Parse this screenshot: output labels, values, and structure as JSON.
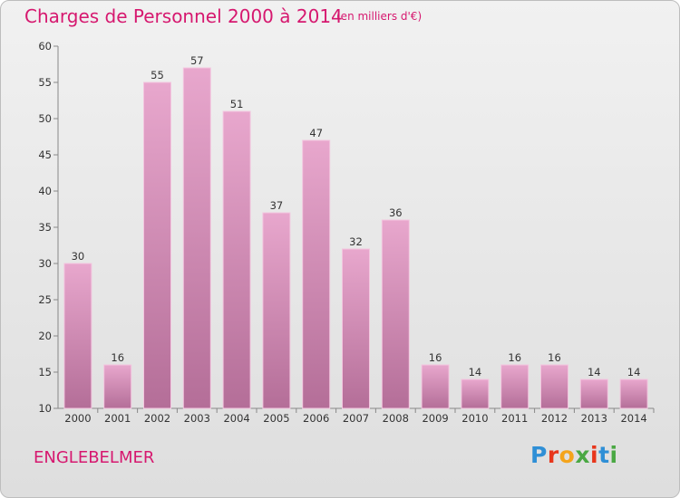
{
  "header": {
    "title": "Charges de Personnel 2000 à 2014",
    "unit": "(en milliers d'€)"
  },
  "footer": {
    "place": "ENGLEBELMER",
    "logo": "Proxiti"
  },
  "colors": {
    "accent": "#d6186f",
    "bar_top": "#e8a7cd",
    "bar_bottom": "#b46e98",
    "logo_letters": [
      "#2f8fd6",
      "#e8361c",
      "#f4a41b",
      "#4aa843",
      "#e8361c",
      "#2f8fd6",
      "#4aa843"
    ]
  },
  "chart_data": {
    "type": "bar",
    "categories": [
      "2000",
      "2001",
      "2002",
      "2003",
      "2004",
      "2005",
      "2006",
      "2007",
      "2008",
      "2009",
      "2010",
      "2011",
      "2012",
      "2013",
      "2014"
    ],
    "values": [
      30,
      16,
      55,
      57,
      51,
      37,
      47,
      32,
      36,
      16,
      14,
      16,
      16,
      14,
      14
    ],
    "ylim": [
      10,
      60
    ],
    "yticks": [
      10,
      15,
      20,
      25,
      30,
      35,
      40,
      45,
      50,
      55,
      60
    ],
    "grid": false,
    "data_labels": true
  }
}
